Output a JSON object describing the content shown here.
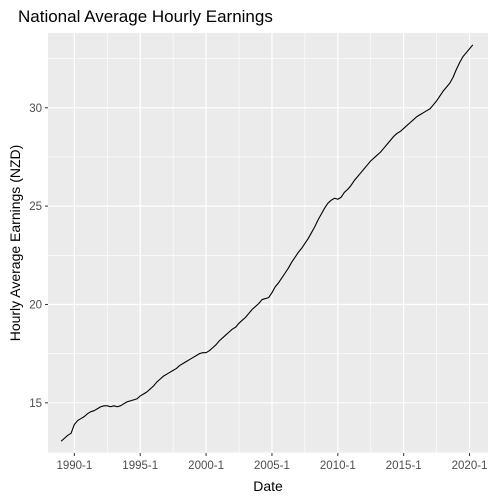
{
  "chart_data": {
    "type": "line",
    "title": "National Average Hourly Earnings",
    "xlabel": "Date",
    "ylabel": "Hourly Average Earnings (NZD)",
    "x_ticks": [
      "1990-1",
      "1995-1",
      "2000-1",
      "2005-1",
      "2010-1",
      "2015-1",
      "2020-1"
    ],
    "y_ticks": [
      15,
      20,
      25,
      30
    ],
    "xlim": [
      1988.0,
      2021.4
    ],
    "ylim": [
      12.45,
      33.8
    ],
    "grid": true,
    "legend": "none",
    "colors": {
      "panel_background": "#ebebeb",
      "grid_major": "#ffffff",
      "line": "#000000",
      "tick_label": "#4d4d4d",
      "tick_mark": "#333333"
    },
    "series": [
      {
        "x": [
          1989.0,
          1989.25,
          1989.5,
          1989.75,
          1990.0,
          1990.25,
          1990.5,
          1990.75,
          1991.0,
          1991.25,
          1991.5,
          1991.75,
          1992.0,
          1992.25,
          1992.5,
          1992.75,
          1993.0,
          1993.25,
          1993.5,
          1993.75,
          1994.0,
          1994.25,
          1994.5,
          1994.75,
          1995.0,
          1995.25,
          1995.5,
          1995.75,
          1996.0,
          1996.25,
          1996.5,
          1996.75,
          1997.0,
          1997.25,
          1997.5,
          1997.75,
          1998.0,
          1998.25,
          1998.5,
          1998.75,
          1999.0,
          1999.25,
          1999.5,
          1999.75,
          2000.0,
          2000.25,
          2000.5,
          2000.75,
          2001.0,
          2001.25,
          2001.5,
          2001.75,
          2002.0,
          2002.25,
          2002.5,
          2002.75,
          2003.0,
          2003.25,
          2003.5,
          2003.75,
          2004.0,
          2004.25,
          2004.5,
          2004.75,
          2005.0,
          2005.25,
          2005.5,
          2005.75,
          2006.0,
          2006.25,
          2006.5,
          2006.75,
          2007.0,
          2007.25,
          2007.5,
          2007.75,
          2008.0,
          2008.25,
          2008.5,
          2008.75,
          2009.0,
          2009.25,
          2009.5,
          2009.75,
          2010.0,
          2010.25,
          2010.5,
          2010.75,
          2011.0,
          2011.25,
          2011.5,
          2011.75,
          2012.0,
          2012.25,
          2012.5,
          2012.75,
          2013.0,
          2013.25,
          2013.5,
          2013.75,
          2014.0,
          2014.25,
          2014.5,
          2014.75,
          2015.0,
          2015.25,
          2015.5,
          2015.75,
          2016.0,
          2016.25,
          2016.5,
          2016.75,
          2017.0,
          2017.25,
          2017.5,
          2017.75,
          2018.0,
          2018.25,
          2018.5,
          2018.75,
          2019.0,
          2019.25,
          2019.5,
          2019.75,
          2020.0,
          2020.25
        ],
        "y": [
          13.05,
          13.2,
          13.35,
          13.45,
          13.9,
          14.1,
          14.2,
          14.3,
          14.45,
          14.55,
          14.6,
          14.7,
          14.8,
          14.85,
          14.85,
          14.8,
          14.85,
          14.8,
          14.85,
          14.95,
          15.05,
          15.1,
          15.15,
          15.2,
          15.35,
          15.45,
          15.55,
          15.7,
          15.85,
          16.05,
          16.2,
          16.35,
          16.45,
          16.55,
          16.65,
          16.75,
          16.9,
          17.0,
          17.1,
          17.2,
          17.3,
          17.4,
          17.5,
          17.55,
          17.55,
          17.65,
          17.8,
          17.95,
          18.15,
          18.3,
          18.45,
          18.6,
          18.75,
          18.85,
          19.05,
          19.2,
          19.35,
          19.55,
          19.75,
          19.9,
          20.05,
          20.25,
          20.3,
          20.35,
          20.6,
          20.9,
          21.1,
          21.35,
          21.6,
          21.85,
          22.15,
          22.4,
          22.65,
          22.85,
          23.1,
          23.35,
          23.65,
          23.95,
          24.3,
          24.6,
          24.9,
          25.15,
          25.3,
          25.4,
          25.35,
          25.45,
          25.7,
          25.85,
          26.05,
          26.3,
          26.5,
          26.7,
          26.9,
          27.1,
          27.3,
          27.45,
          27.6,
          27.75,
          27.95,
          28.15,
          28.35,
          28.55,
          28.7,
          28.8,
          28.95,
          29.1,
          29.25,
          29.4,
          29.55,
          29.65,
          29.75,
          29.85,
          29.95,
          30.15,
          30.35,
          30.6,
          30.85,
          31.05,
          31.25,
          31.55,
          31.95,
          32.3,
          32.6,
          32.8,
          33.0,
          33.2
        ]
      }
    ]
  }
}
